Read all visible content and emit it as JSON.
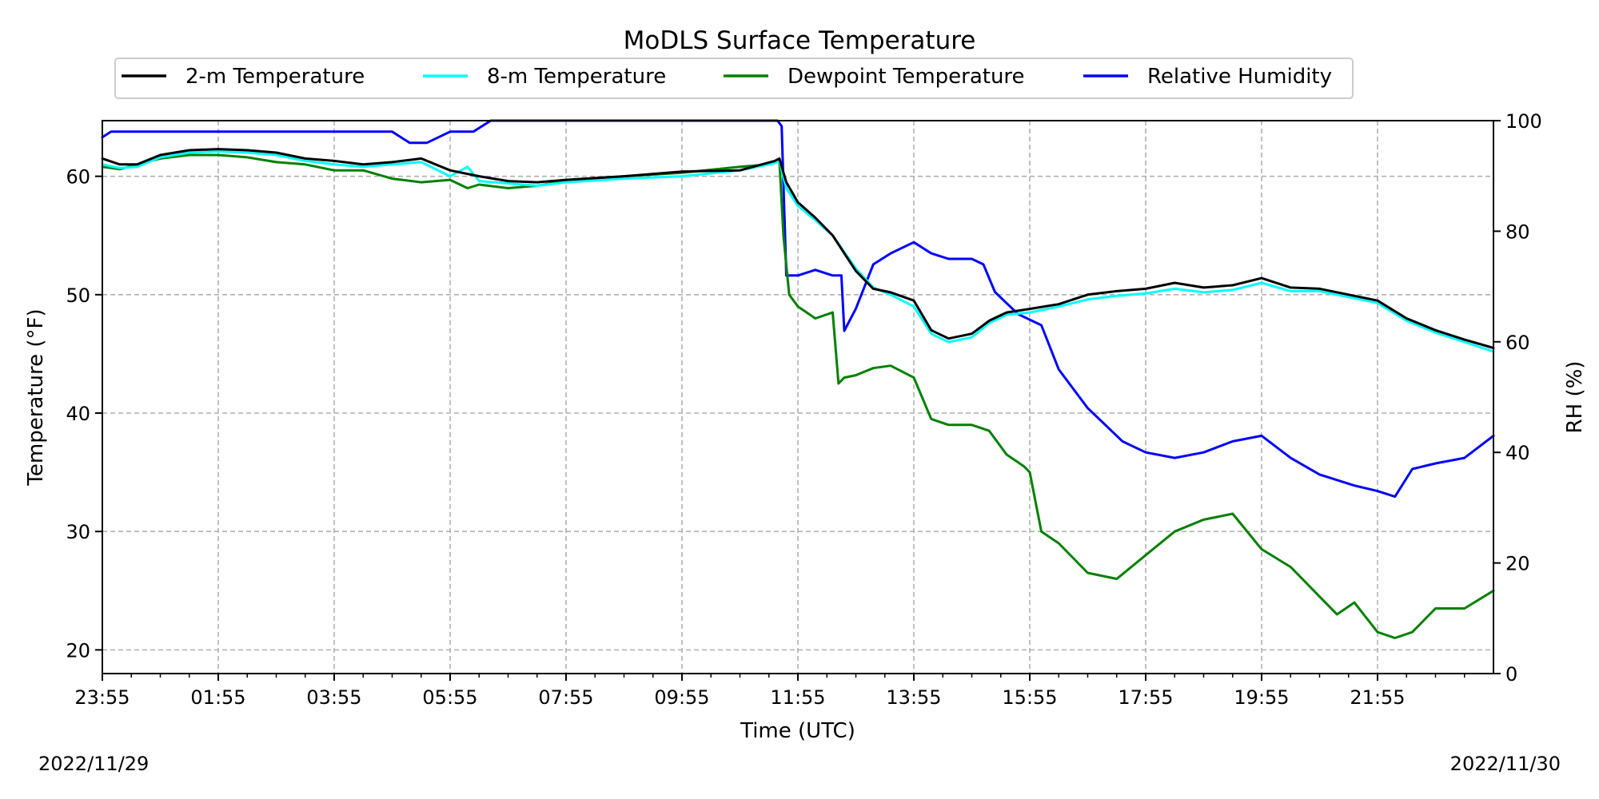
{
  "chart_data": {
    "type": "line",
    "title": "MoDLS Surface Temperature",
    "xlabel": "Time (UTC)",
    "ylabel": "Temperature ($^\\circ$F)",
    "ylabel_display": "Temperature (°F)",
    "y2label": "RH (%)",
    "x_unit": "hours since 23:55 on 2022/11/29",
    "xlim": [
      0,
      24
    ],
    "ylim": [
      18,
      64.7
    ],
    "y2lim": [
      0,
      100
    ],
    "x_ticks": [
      0,
      2,
      4,
      6,
      8,
      10,
      12,
      14,
      16,
      18,
      20,
      22
    ],
    "x_tick_labels": [
      "23:55",
      "01:55",
      "03:55",
      "05:55",
      "07:55",
      "09:55",
      "11:55",
      "13:55",
      "15:55",
      "17:55",
      "19:55",
      "21:55"
    ],
    "y_ticks": [
      20,
      30,
      40,
      50,
      60
    ],
    "y_tick_labels": [
      "20",
      "30",
      "40",
      "50",
      "60"
    ],
    "y2_ticks": [
      0,
      20,
      40,
      60,
      80,
      100
    ],
    "y2_tick_labels": [
      "0",
      "20",
      "40",
      "60",
      "80",
      "100"
    ],
    "grid": true,
    "legend_position": "top, above plot",
    "date_start": "2022/11/29",
    "date_end": "2022/11/30",
    "series": [
      {
        "name": "2-m Temperature",
        "axis": "left",
        "color": "#000000",
        "x": [
          0,
          0.3,
          0.6,
          1.0,
          1.5,
          2.0,
          2.5,
          3.0,
          3.5,
          4.0,
          4.5,
          5.0,
          5.5,
          6.0,
          6.5,
          7.0,
          7.5,
          8.0,
          9.0,
          10.0,
          11.0,
          11.6,
          11.68,
          11.8,
          12.0,
          12.3,
          12.6,
          13.0,
          13.3,
          13.6,
          14.0,
          14.3,
          14.6,
          15.0,
          15.3,
          15.6,
          16.0,
          16.5,
          17.0,
          17.5,
          18.0,
          18.5,
          19.0,
          19.5,
          20.0,
          20.5,
          21.0,
          21.5,
          22.0,
          22.5,
          23.0,
          23.5,
          24.0
        ],
        "y": [
          61.5,
          61.0,
          61.0,
          61.8,
          62.2,
          62.3,
          62.2,
          62.0,
          61.5,
          61.3,
          61.0,
          61.2,
          61.5,
          60.5,
          60.0,
          59.6,
          59.5,
          59.7,
          60.0,
          60.4,
          60.5,
          61.3,
          61.5,
          59.5,
          57.8,
          56.5,
          55.0,
          52.0,
          50.5,
          50.2,
          49.5,
          47.0,
          46.3,
          46.7,
          47.8,
          48.5,
          48.8,
          49.2,
          50.0,
          50.3,
          50.5,
          51.0,
          50.6,
          50.8,
          51.4,
          50.6,
          50.5,
          50.0,
          49.5,
          48.0,
          47.0,
          46.2,
          45.5
        ]
      },
      {
        "name": "8-m Temperature",
        "axis": "left",
        "color": "#00ffff",
        "x": [
          0,
          0.3,
          0.6,
          1.0,
          1.5,
          2.0,
          2.5,
          3.0,
          3.5,
          4.0,
          4.5,
          5.0,
          5.5,
          6.0,
          6.3,
          6.5,
          7.0,
          7.5,
          8.0,
          9.0,
          10.0,
          11.0,
          11.6,
          11.68,
          11.8,
          12.0,
          12.3,
          12.6,
          13.0,
          13.3,
          13.6,
          14.0,
          14.3,
          14.6,
          15.0,
          15.3,
          15.6,
          16.0,
          16.5,
          17.0,
          17.5,
          18.0,
          18.5,
          19.0,
          19.5,
          20.0,
          20.5,
          21.0,
          21.5,
          22.0,
          22.5,
          23.0,
          23.5,
          24.0
        ],
        "y": [
          61.0,
          60.7,
          60.8,
          61.6,
          62.0,
          62.1,
          62.0,
          61.8,
          61.3,
          61.0,
          60.8,
          61.0,
          61.2,
          60.0,
          60.8,
          59.6,
          59.4,
          59.2,
          59.5,
          59.8,
          60.0,
          60.5,
          61.1,
          61.3,
          59.0,
          57.5,
          56.3,
          55.0,
          52.2,
          50.6,
          50.0,
          49.0,
          46.7,
          46.0,
          46.4,
          47.6,
          48.3,
          48.5,
          49.0,
          49.6,
          49.9,
          50.1,
          50.5,
          50.2,
          50.4,
          51.0,
          50.3,
          50.3,
          49.8,
          49.3,
          47.8,
          46.8,
          46.0,
          45.2
        ]
      },
      {
        "name": "Dewpoint Temperature",
        "axis": "left",
        "color": "#008000",
        "x": [
          0,
          0.3,
          0.6,
          1.0,
          1.5,
          2.0,
          2.5,
          3.0,
          3.5,
          4.0,
          4.5,
          5.0,
          5.5,
          6.0,
          6.3,
          6.5,
          7.0,
          7.5,
          8.0,
          9.0,
          10.0,
          11.0,
          11.5,
          11.68,
          11.75,
          11.85,
          12.0,
          12.3,
          12.6,
          12.7,
          12.8,
          13.0,
          13.3,
          13.6,
          14.0,
          14.3,
          14.6,
          15.0,
          15.3,
          15.6,
          15.9,
          16.0,
          16.2,
          16.5,
          17.0,
          17.5,
          18.0,
          18.5,
          19.0,
          19.5,
          20.0,
          20.5,
          21.0,
          21.3,
          21.6,
          22.0,
          22.3,
          22.6,
          23.0,
          23.5,
          24.0
        ],
        "y": [
          60.8,
          60.6,
          61.0,
          61.5,
          61.8,
          61.8,
          61.6,
          61.2,
          61.0,
          60.5,
          60.5,
          59.8,
          59.5,
          59.7,
          59.0,
          59.3,
          59.0,
          59.2,
          59.6,
          60.0,
          60.3,
          60.8,
          61.0,
          61.4,
          55.0,
          50.0,
          49.0,
          48.0,
          48.5,
          42.5,
          43.0,
          43.2,
          43.8,
          44.0,
          43.0,
          39.5,
          39.0,
          39.0,
          38.5,
          36.5,
          35.5,
          35.0,
          30.0,
          29.0,
          26.5,
          26.0,
          28.0,
          30.0,
          31.0,
          31.5,
          28.5,
          27.0,
          24.5,
          23.0,
          24.0,
          21.5,
          21.0,
          21.5,
          23.5,
          23.5,
          25.0
        ]
      },
      {
        "name": "Relative Humidity",
        "axis": "right",
        "color": "#0000ff",
        "x": [
          0,
          0.15,
          0.6,
          1.0,
          1.5,
          2.0,
          3.0,
          4.0,
          4.3,
          5.0,
          5.3,
          5.6,
          6.0,
          6.4,
          6.7,
          7.3,
          7.8,
          8.0,
          9.0,
          10.0,
          11.0,
          11.6,
          11.65,
          11.72,
          11.8,
          12.0,
          12.3,
          12.6,
          12.75,
          12.8,
          13.0,
          13.3,
          13.6,
          14.0,
          14.3,
          14.6,
          15.0,
          15.2,
          15.4,
          15.6,
          15.8,
          16.0,
          16.2,
          16.5,
          17.0,
          17.3,
          17.6,
          18.0,
          18.5,
          19.0,
          19.5,
          20.0,
          20.5,
          21.0,
          21.3,
          21.6,
          22.0,
          22.3,
          22.6,
          23.0,
          23.5,
          24.0
        ],
        "y": [
          97,
          98,
          98,
          98,
          98,
          98,
          98,
          98,
          98,
          98,
          96,
          96,
          98,
          98,
          100,
          100,
          100,
          100,
          100,
          100,
          100,
          100,
          100,
          99,
          72,
          72,
          73,
          72,
          72,
          62,
          66,
          74,
          76,
          78,
          76,
          75,
          75,
          74,
          69,
          67,
          65,
          64,
          63,
          55,
          48,
          45,
          42,
          40,
          39,
          40,
          42,
          43,
          39,
          36,
          35,
          34,
          33,
          32,
          37,
          38,
          39,
          43
        ]
      }
    ]
  }
}
